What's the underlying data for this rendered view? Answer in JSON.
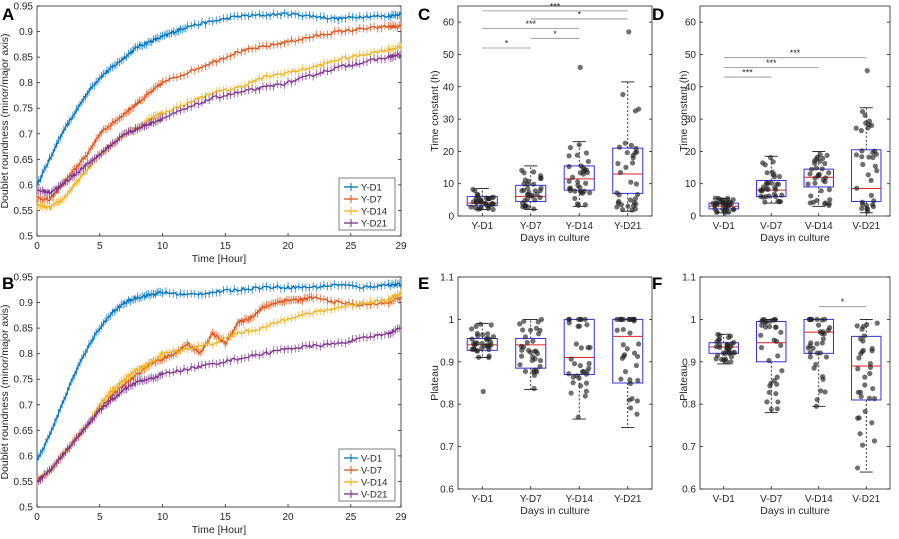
{
  "series_colors": {
    "D1": "#0072BD",
    "D7": "#D95319",
    "D14": "#EDB120",
    "D21": "#7E2F8E"
  },
  "chart_data": [
    {
      "id": "A",
      "type": "line",
      "letter": "A",
      "xlabel": "Time [Hour]",
      "ylabel": "Doublet roundness (minor/major axis)",
      "xlim": [
        0,
        29
      ],
      "ylim": [
        0.5,
        0.95
      ],
      "xticks": [
        0,
        5,
        10,
        15,
        20,
        25,
        29
      ],
      "yticks": [
        0.5,
        0.55,
        0.6,
        0.65,
        0.7,
        0.75,
        0.8,
        0.85,
        0.9,
        0.95
      ],
      "legend_position": "bottom-right",
      "series": [
        {
          "name": "Y-D1",
          "color": "#0072BD",
          "x": [
            0,
            1,
            2,
            3,
            4,
            5,
            6,
            7,
            8,
            9,
            10,
            11,
            12,
            14,
            16,
            18,
            20,
            22,
            24,
            26,
            28,
            29
          ],
          "y": [
            0.6,
            0.65,
            0.7,
            0.74,
            0.78,
            0.81,
            0.83,
            0.85,
            0.87,
            0.88,
            0.89,
            0.9,
            0.91,
            0.92,
            0.93,
            0.932,
            0.935,
            0.93,
            0.925,
            0.93,
            0.93,
            0.935
          ]
        },
        {
          "name": "Y-D7",
          "color": "#D95319",
          "x": [
            0,
            1,
            2,
            3,
            4,
            5,
            6,
            7,
            8,
            9,
            10,
            12,
            14,
            16,
            18,
            20,
            22,
            24,
            26,
            28,
            29
          ],
          "y": [
            0.575,
            0.57,
            0.6,
            0.63,
            0.66,
            0.7,
            0.72,
            0.74,
            0.76,
            0.78,
            0.8,
            0.82,
            0.84,
            0.86,
            0.87,
            0.88,
            0.89,
            0.9,
            0.905,
            0.91,
            0.91
          ]
        },
        {
          "name": "Y-D14",
          "color": "#EDB120",
          "x": [
            0,
            1,
            2,
            3,
            4,
            5,
            6,
            7,
            8,
            9,
            10,
            12,
            14,
            16,
            18,
            20,
            22,
            24,
            26,
            28,
            29
          ],
          "y": [
            0.56,
            0.555,
            0.57,
            0.6,
            0.63,
            0.66,
            0.68,
            0.7,
            0.71,
            0.73,
            0.74,
            0.76,
            0.78,
            0.79,
            0.81,
            0.82,
            0.83,
            0.845,
            0.855,
            0.865,
            0.87
          ]
        },
        {
          "name": "Y-D21",
          "color": "#7E2F8E",
          "x": [
            0,
            1,
            2,
            3,
            4,
            5,
            6,
            7,
            8,
            9,
            10,
            12,
            14,
            16,
            18,
            20,
            22,
            24,
            26,
            28,
            29
          ],
          "y": [
            0.59,
            0.585,
            0.6,
            0.62,
            0.64,
            0.66,
            0.68,
            0.7,
            0.71,
            0.72,
            0.73,
            0.75,
            0.77,
            0.78,
            0.79,
            0.8,
            0.815,
            0.83,
            0.84,
            0.85,
            0.855
          ]
        }
      ]
    },
    {
      "id": "B",
      "type": "line",
      "letter": "B",
      "xlabel": "Time [Hour]",
      "ylabel": "Doublet roundness (minor/major axis)",
      "xlim": [
        0,
        29
      ],
      "ylim": [
        0.5,
        0.95
      ],
      "xticks": [
        0,
        5,
        10,
        15,
        20,
        25,
        29
      ],
      "yticks": [
        0.5,
        0.55,
        0.6,
        0.65,
        0.7,
        0.75,
        0.8,
        0.85,
        0.9,
        0.95
      ],
      "legend_position": "bottom-right",
      "series": [
        {
          "name": "V-D1",
          "color": "#0072BD",
          "x": [
            0,
            1,
            2,
            3,
            4,
            5,
            6,
            7,
            8,
            9,
            10,
            12,
            14,
            16,
            18,
            20,
            22,
            24,
            26,
            28,
            29
          ],
          "y": [
            0.59,
            0.64,
            0.7,
            0.76,
            0.81,
            0.85,
            0.88,
            0.9,
            0.91,
            0.915,
            0.92,
            0.915,
            0.92,
            0.925,
            0.93,
            0.93,
            0.93,
            0.935,
            0.93,
            0.935,
            0.935
          ]
        },
        {
          "name": "V-D7",
          "color": "#D95319",
          "x": [
            0,
            1,
            2,
            3,
            4,
            5,
            6,
            7,
            8,
            9,
            10,
            11,
            12,
            13,
            14,
            15,
            16,
            17,
            18,
            19,
            20,
            21,
            22,
            24,
            26,
            28,
            29
          ],
          "y": [
            0.55,
            0.57,
            0.6,
            0.63,
            0.66,
            0.69,
            0.72,
            0.74,
            0.76,
            0.78,
            0.79,
            0.8,
            0.82,
            0.8,
            0.84,
            0.82,
            0.86,
            0.87,
            0.89,
            0.9,
            0.905,
            0.905,
            0.91,
            0.9,
            0.895,
            0.9,
            0.91
          ]
        },
        {
          "name": "V-D14",
          "color": "#EDB120",
          "x": [
            0,
            1,
            2,
            3,
            4,
            5,
            6,
            7,
            8,
            9,
            10,
            12,
            14,
            16,
            18,
            20,
            22,
            24,
            26,
            28,
            29
          ],
          "y": [
            0.55,
            0.57,
            0.6,
            0.63,
            0.66,
            0.7,
            0.73,
            0.75,
            0.77,
            0.78,
            0.8,
            0.81,
            0.82,
            0.84,
            0.85,
            0.87,
            0.88,
            0.89,
            0.9,
            0.905,
            0.92
          ]
        },
        {
          "name": "V-D21",
          "color": "#7E2F8E",
          "x": [
            0,
            1,
            2,
            3,
            4,
            5,
            6,
            7,
            8,
            9,
            10,
            12,
            14,
            16,
            18,
            20,
            22,
            24,
            26,
            28,
            29
          ],
          "y": [
            0.55,
            0.57,
            0.6,
            0.63,
            0.66,
            0.69,
            0.71,
            0.73,
            0.745,
            0.75,
            0.76,
            0.77,
            0.78,
            0.79,
            0.8,
            0.81,
            0.815,
            0.82,
            0.83,
            0.84,
            0.85
          ]
        }
      ]
    },
    {
      "id": "C",
      "type": "box",
      "letter": "C",
      "xlabel": "Days in culture",
      "ylabel": "Time constant (h)",
      "ylim": [
        0,
        65
      ],
      "yticks": [
        0,
        10,
        20,
        30,
        40,
        50,
        60
      ],
      "categories": [
        "Y-D1",
        "Y-D7",
        "Y-D14",
        "Y-D21"
      ],
      "boxes": [
        {
          "min": 2,
          "q1": 3.2,
          "median": 4,
          "q3": 6,
          "max": 8.5
        },
        {
          "min": 2,
          "q1": 4.5,
          "median": 6,
          "q3": 9.5,
          "max": 15.5
        },
        {
          "min": 3,
          "q1": 8,
          "median": 11.5,
          "q3": 15.5,
          "max": 23
        },
        {
          "min": 1.5,
          "q1": 7,
          "median": 13,
          "q3": 21,
          "max": 41.5
        }
      ],
      "outliers": [
        {
          "category": "Y-D14",
          "value": 46
        },
        {
          "category": "Y-D21",
          "value": 57
        }
      ],
      "significance": [
        {
          "from": "Y-D1",
          "to": "Y-D7",
          "label": "*",
          "y": 52
        },
        {
          "from": "Y-D7",
          "to": "Y-D14",
          "label": "*",
          "y": 55
        },
        {
          "from": "Y-D1",
          "to": "Y-D14",
          "label": "***",
          "y": 58
        },
        {
          "from": "Y-D7",
          "to": "Y-D21",
          "label": "*",
          "y": 61
        },
        {
          "from": "Y-D1",
          "to": "Y-D21",
          "label": "***",
          "y": 63.5
        }
      ]
    },
    {
      "id": "D",
      "type": "box",
      "letter": "D",
      "xlabel": "Days in culture",
      "ylabel": "Time constant (h)",
      "ylim": [
        0,
        65
      ],
      "yticks": [
        0,
        10,
        20,
        30,
        40,
        50,
        60
      ],
      "categories": [
        "V-D1",
        "V-D7",
        "V-D14",
        "V-D21"
      ],
      "boxes": [
        {
          "min": 1,
          "q1": 2.2,
          "median": 3,
          "q3": 4,
          "max": 5.5
        },
        {
          "min": 4,
          "q1": 6,
          "median": 8,
          "q3": 11,
          "max": 18.5
        },
        {
          "min": 3,
          "q1": 9,
          "median": 12,
          "q3": 14.5,
          "max": 20
        },
        {
          "min": 1,
          "q1": 4.5,
          "median": 8.5,
          "q3": 20.5,
          "max": 33.5
        }
      ],
      "outliers": [
        {
          "category": "V-D21",
          "value": 45
        }
      ],
      "significance": [
        {
          "from": "V-D1",
          "to": "V-D7",
          "label": "***",
          "y": 43
        },
        {
          "from": "V-D1",
          "to": "V-D14",
          "label": "***",
          "y": 46
        },
        {
          "from": "V-D1",
          "to": "V-D21",
          "label": "***",
          "y": 49
        }
      ]
    },
    {
      "id": "E",
      "type": "box",
      "letter": "E",
      "xlabel": "Days in culture",
      "ylabel": "Plateau",
      "ylim": [
        0.6,
        1.1
      ],
      "yticks": [
        0.6,
        0.7,
        0.8,
        0.9,
        1,
        1.1
      ],
      "categories": [
        "Y-D1",
        "Y-D7",
        "Y-D14",
        "Y-D21"
      ],
      "boxes": [
        {
          "min": 0.91,
          "q1": 0.927,
          "median": 0.94,
          "q3": 0.955,
          "max": 0.99
        },
        {
          "min": 0.835,
          "q1": 0.885,
          "median": 0.94,
          "q3": 0.955,
          "max": 1.0
        },
        {
          "min": 0.765,
          "q1": 0.87,
          "median": 0.91,
          "q3": 1.0,
          "max": 1.0
        },
        {
          "min": 0.745,
          "q1": 0.85,
          "median": 0.96,
          "q3": 1.0,
          "max": 1.0
        }
      ],
      "outliers": [
        {
          "category": "Y-D1",
          "value": 0.83
        }
      ],
      "significance": []
    },
    {
      "id": "F",
      "type": "box",
      "letter": "F",
      "xlabel": "Days in culture",
      "ylabel": "Plateau",
      "ylim": [
        0.6,
        1.1
      ],
      "yticks": [
        0.6,
        0.7,
        0.8,
        0.9,
        1,
        1.1
      ],
      "categories": [
        "V-D1",
        "V-D7",
        "V-D14",
        "V-D21"
      ],
      "boxes": [
        {
          "min": 0.895,
          "q1": 0.92,
          "median": 0.935,
          "q3": 0.945,
          "max": 0.965
        },
        {
          "min": 0.78,
          "q1": 0.9,
          "median": 0.945,
          "q3": 0.995,
          "max": 1.0
        },
        {
          "min": 0.795,
          "q1": 0.92,
          "median": 0.97,
          "q3": 1.0,
          "max": 1.0
        },
        {
          "min": 0.64,
          "q1": 0.81,
          "median": 0.89,
          "q3": 0.96,
          "max": 1.0
        }
      ],
      "outliers": [],
      "significance": [
        {
          "from": "V-D14",
          "to": "V-D21",
          "label": "*",
          "y": 1.03
        }
      ]
    }
  ]
}
